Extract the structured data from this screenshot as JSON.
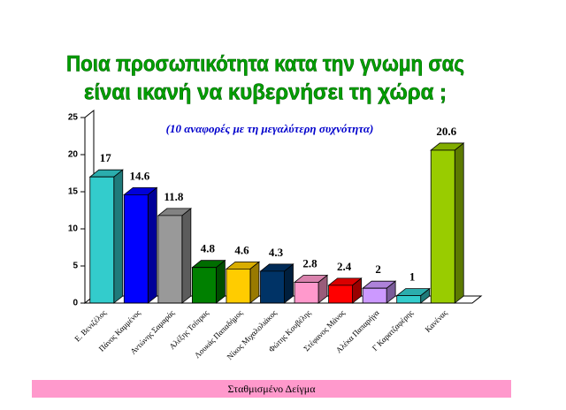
{
  "chart_data": {
    "type": "bar3d",
    "title": [
      "Ποια προσωπικότητα κατα την γνωμη σας",
      "είναι ικανή να κυβερνήσει τη χώρα ;"
    ],
    "subtitle": "(10 αναφορές με τη μεγαλύτερη συχνότητα)",
    "footer": "Σταθμισμένο Δείγμα",
    "categories": [
      "Ε. Βενιζέλος",
      "Πάνος Καμμένος",
      "Αντώνης Σαμαράς",
      "Αλέξης Τσίπρας",
      "Λουκάς Παπαδήμος",
      "Νίκος Μιχαλολιάκος",
      "Φώτης Κουβέλης",
      "Στέφανος Μάνος",
      "Αλέκα Παπαρήγα",
      "Γ Καρατζαφέρης",
      "Κανένας"
    ],
    "values": [
      17,
      14.6,
      11.8,
      4.8,
      4.6,
      4.3,
      2.8,
      2.4,
      2,
      1,
      20.6
    ],
    "colors": [
      "#33cccc",
      "#0000ff",
      "#999999",
      "#008000",
      "#ffcc00",
      "#003366",
      "#ff99cc",
      "#ff0000",
      "#cc99ff",
      "#33cccc",
      "#99cc00"
    ],
    "ylim": [
      0,
      25
    ],
    "yticks": [
      0,
      5,
      10,
      15,
      20,
      25
    ]
  }
}
